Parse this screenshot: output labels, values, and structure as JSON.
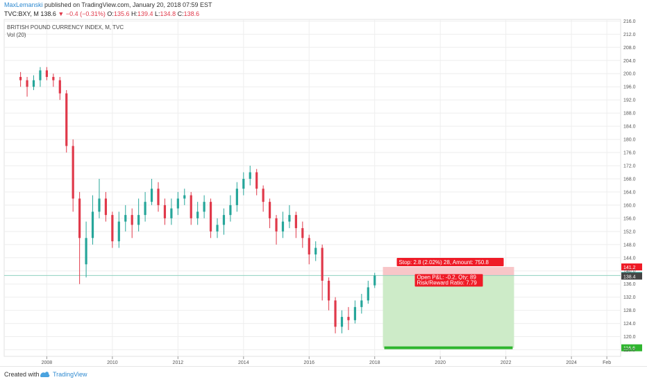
{
  "header": {
    "author": "MaxLemanski",
    "published_text": "published on TradingView.com, January 20, 2018 07:59 EST",
    "symbol": "TVC:BXY, M",
    "last": "138.6",
    "change": "−0.4 (−0.31%)",
    "open_label": "O:",
    "open": "135.6",
    "high_label": "H:",
    "high": "139.4",
    "low_label": "L:",
    "low": "134.8",
    "close_label": "C:",
    "close": "138.6"
  },
  "legend": {
    "title": "BRITISH POUND CURRENCY INDEX, M, TVC",
    "volume": "Vol (20)"
  },
  "position_tool": {
    "stop_label": "Stop: 2.8 (2.02%) 28, Amount: 750.8",
    "pnl_label": "Open P&L: -0.2, Qty: 89",
    "rr_label": "Risk/Reward Ratio: 7.79",
    "stop_price": "141.2",
    "target_price": "116.6",
    "current_price": "138.6",
    "entry_price": "138.4"
  },
  "footer": {
    "created_with": "Created with",
    "brand": "TradingView"
  },
  "colors": {
    "up": "#26a69a",
    "down": "#e0394a",
    "stop_zone": "#f8c6c8",
    "target_zone": "#cdebc8",
    "target_tag": "#2fb52f",
    "stop_tag": "#ef1b27",
    "entry_line": "#8fd1bf"
  },
  "chart_data": {
    "type": "candlestick",
    "title": "BRITISH POUND CURRENCY INDEX, M, TVC",
    "x_tick_labels": [
      "2008",
      "2010",
      "2012",
      "2014",
      "2016",
      "2018",
      "2020",
      "2022",
      "2024",
      "Feb"
    ],
    "x_ticks": [
      2008,
      2010,
      2012,
      2014,
      2016,
      2018,
      2020,
      2022,
      2024,
      2025.08
    ],
    "y_tick_labels": [
      "116.0",
      "120.0",
      "124.0",
      "128.0",
      "132.0",
      "136.0",
      "140.0",
      "144.0",
      "148.0",
      "152.0",
      "156.0",
      "160.0",
      "164.0",
      "168.0",
      "172.0",
      "176.0",
      "180.0",
      "184.0",
      "188.0",
      "192.0",
      "196.0",
      "200.0",
      "204.0",
      "208.0",
      "212.0",
      "216.0"
    ],
    "ylim": [
      114.0,
      216.5
    ],
    "xlim": [
      2006.7,
      2025.5
    ],
    "series": [
      {
        "name": "BXY",
        "points": [
          [
            2007.2,
            199,
            198,
            200.5,
            196
          ],
          [
            2007.4,
            198,
            196,
            199,
            193
          ],
          [
            2007.6,
            196,
            198,
            199.5,
            195
          ],
          [
            2007.8,
            198,
            201,
            202,
            196
          ],
          [
            2008.0,
            201,
            199,
            202,
            198
          ],
          [
            2008.2,
            199,
            198,
            200,
            196
          ],
          [
            2008.4,
            198,
            194,
            199,
            192
          ],
          [
            2008.6,
            194,
            178,
            195,
            176
          ],
          [
            2008.8,
            178,
            162,
            180,
            158
          ],
          [
            2009.0,
            162,
            150,
            164,
            136
          ],
          [
            2009.2,
            142,
            150,
            155,
            138
          ],
          [
            2009.4,
            150,
            158,
            163,
            148
          ],
          [
            2009.6,
            158,
            162,
            168,
            156
          ],
          [
            2009.8,
            162,
            157,
            164,
            155
          ],
          [
            2010.0,
            157,
            149,
            158,
            147
          ],
          [
            2010.2,
            149,
            155,
            158,
            147
          ],
          [
            2010.4,
            155,
            157,
            160,
            152
          ],
          [
            2010.6,
            157,
            154,
            159,
            150
          ],
          [
            2010.8,
            154,
            157,
            162,
            152
          ],
          [
            2011.0,
            157,
            161,
            164,
            155
          ],
          [
            2011.2,
            161,
            165,
            168,
            160
          ],
          [
            2011.4,
            165,
            160,
            167,
            158
          ],
          [
            2011.6,
            160,
            156,
            162,
            154
          ],
          [
            2011.8,
            156,
            159,
            162,
            154
          ],
          [
            2012.0,
            159,
            162,
            164,
            157
          ],
          [
            2012.2,
            162,
            163,
            165,
            160
          ],
          [
            2012.4,
            163,
            156,
            164,
            154
          ],
          [
            2012.6,
            156,
            158,
            161,
            154
          ],
          [
            2012.8,
            158,
            161,
            163,
            156
          ],
          [
            2013.0,
            161,
            152,
            162,
            150
          ],
          [
            2013.2,
            152,
            154,
            156,
            150
          ],
          [
            2013.4,
            154,
            157,
            159,
            151
          ],
          [
            2013.6,
            157,
            160,
            163,
            155
          ],
          [
            2013.8,
            160,
            165,
            167,
            158
          ],
          [
            2014.0,
            165,
            168,
            170,
            163
          ],
          [
            2014.2,
            168,
            170,
            172,
            166
          ],
          [
            2014.4,
            170,
            165,
            171,
            163
          ],
          [
            2014.6,
            165,
            161,
            166,
            158
          ],
          [
            2014.8,
            161,
            156,
            162,
            153
          ],
          [
            2015.0,
            156,
            152,
            157,
            148
          ],
          [
            2015.2,
            152,
            155,
            158,
            150
          ],
          [
            2015.4,
            155,
            157,
            160,
            153
          ],
          [
            2015.6,
            157,
            153,
            158,
            150
          ],
          [
            2015.8,
            153,
            150,
            155,
            147
          ],
          [
            2016.0,
            150,
            145,
            151,
            142
          ],
          [
            2016.2,
            145,
            147,
            149,
            143
          ],
          [
            2016.4,
            147,
            137,
            148,
            131
          ],
          [
            2016.6,
            137,
            131,
            138,
            128
          ],
          [
            2016.8,
            131,
            123,
            132,
            121
          ],
          [
            2017.0,
            123,
            126,
            128,
            121
          ],
          [
            2017.2,
            126,
            125,
            129,
            122
          ],
          [
            2017.4,
            125,
            129,
            131,
            124
          ],
          [
            2017.6,
            129,
            131,
            133,
            127
          ],
          [
            2017.8,
            131,
            135,
            137,
            130
          ],
          [
            2018.0,
            135.6,
            138.6,
            139.4,
            134.8
          ]
        ]
      }
    ]
  }
}
